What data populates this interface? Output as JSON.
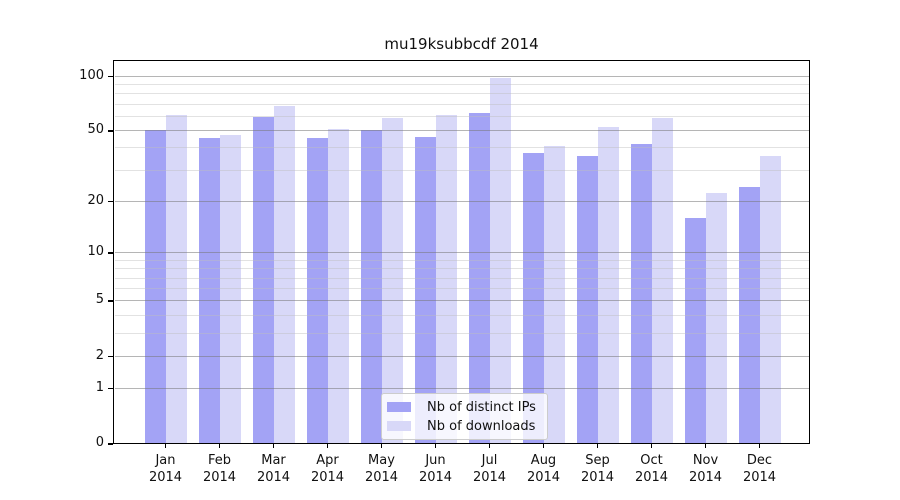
{
  "figure": {
    "title": "mu19ksubbcdf 2014"
  },
  "chart_data": {
    "type": "bar",
    "title": "mu19ksubbcdf 2014",
    "categories": [
      "Jan 2014",
      "Feb 2014",
      "Mar 2014",
      "Apr 2014",
      "May 2014",
      "Jun 2014",
      "Jul 2014",
      "Aug 2014",
      "Sep 2014",
      "Oct 2014",
      "Nov 2014",
      "Dec 2014"
    ],
    "month_labels": [
      "Jan",
      "Feb",
      "Mar",
      "Apr",
      "May",
      "Jun",
      "Jul",
      "Aug",
      "Sep",
      "Oct",
      "Nov",
      "Dec"
    ],
    "year_label": "2014",
    "series": [
      {
        "name": "Nb of distinct IPs",
        "color": "#a3a3f5",
        "values": [
          50,
          45,
          59,
          45,
          50,
          46,
          62,
          37,
          36,
          42,
          16,
          24
        ]
      },
      {
        "name": "Nb of downloads",
        "color": "#d8d8f8",
        "values": [
          61,
          47,
          68,
          51,
          58,
          61,
          97,
          41,
          52,
          58,
          22,
          36
        ]
      }
    ],
    "yscale": "log1p",
    "ylim": [
      0,
      123
    ],
    "ytick_values": [
      100,
      50,
      20,
      10,
      5,
      2,
      1,
      0
    ],
    "ytick_labels": [
      "100",
      "50",
      "20",
      "10",
      "5",
      "2",
      "1",
      "0"
    ],
    "minor_gridline_values": [
      90,
      80,
      70,
      60,
      40,
      30,
      9,
      8,
      7,
      6,
      4,
      3
    ],
    "grid": true,
    "legend_position": "lower center inside",
    "legend_labels": [
      "Nb of distinct IPs",
      "Nb of downloads"
    ]
  },
  "colors": {
    "bar_dark": "#a3a3f5",
    "bar_light": "#d8d8f8",
    "major_grid": "rgba(120,120,120,0.55)",
    "minor_grid": "rgba(190,190,190,0.45)",
    "axis": "#000000",
    "legend_bg": "rgba(255,255,255,0.8)",
    "legend_border": "#cccccc"
  }
}
